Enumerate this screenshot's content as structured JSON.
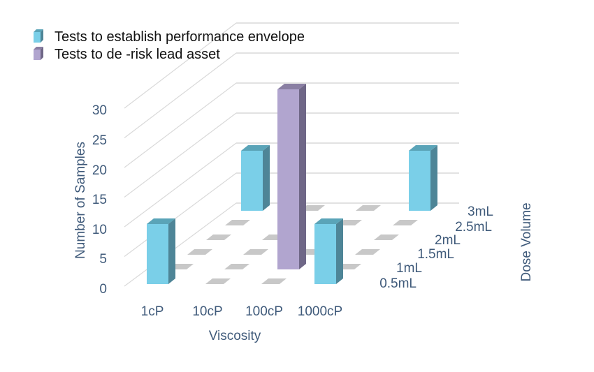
{
  "chart_data": {
    "type": "bar",
    "subtype": "3d-column",
    "title": "",
    "xlabel": "Viscosity",
    "ylabel": "Number of Samples",
    "zlabel": "Dose Volume",
    "categories": [
      "1cP",
      "10cP",
      "100cP",
      "1000cP"
    ],
    "depth_categories": [
      "0.5mL",
      "1mL",
      "1.5mL",
      "2mL",
      "2.5mL",
      "3mL"
    ],
    "yticks": [
      "0",
      "5",
      "10",
      "15",
      "20",
      "25",
      "30"
    ],
    "ylim": [
      0,
      30
    ],
    "grid": true,
    "legend_position": "top-left",
    "series": [
      {
        "name": "Tests to establish performance envelope",
        "color": "#7acfe8",
        "values": [
          [
            10,
            0,
            0,
            0,
            0,
            10
          ],
          [
            0,
            0,
            0,
            0,
            0,
            0
          ],
          [
            0,
            0,
            0,
            0,
            0,
            0
          ],
          [
            10,
            0,
            0,
            0,
            0,
            10
          ]
        ]
      },
      {
        "name": "Tests to de -risk lead asset",
        "color": "#b1a5cf",
        "values": [
          [
            0,
            0,
            0,
            0,
            0,
            0
          ],
          [
            0,
            0,
            0,
            0,
            0,
            0
          ],
          [
            0,
            30,
            0,
            0,
            0,
            0
          ],
          [
            0,
            0,
            0,
            0,
            0,
            0
          ]
        ]
      }
    ]
  }
}
